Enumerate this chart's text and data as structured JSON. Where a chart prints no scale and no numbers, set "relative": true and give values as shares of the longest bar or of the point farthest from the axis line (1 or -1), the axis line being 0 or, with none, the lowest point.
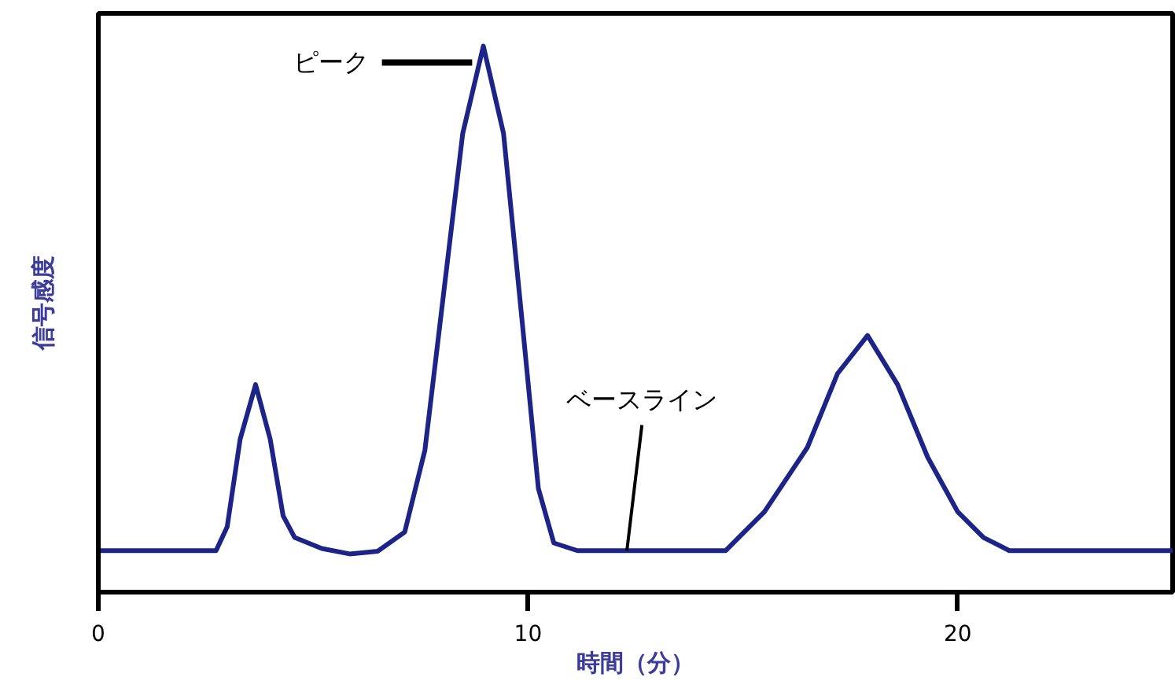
{
  "chart_data": {
    "type": "line",
    "relative": true,
    "xlabel": "時間（分）",
    "ylabel": "信号感度",
    "xlim": [
      0,
      25
    ],
    "xticks": [
      0,
      10,
      20
    ],
    "grid": false,
    "marker": "none",
    "line_style": "solid",
    "x": [
      0,
      2.74,
      3.0,
      3.3,
      3.66,
      4.0,
      4.3,
      4.57,
      5.2,
      5.85,
      6.5,
      7.13,
      7.6,
      8.04,
      8.48,
      8.96,
      9.43,
      9.87,
      10.24,
      10.6,
      11.15,
      14.6,
      15.5,
      16.5,
      17.2,
      17.9,
      18.6,
      19.3,
      20.0,
      20.6,
      21.2,
      25
    ],
    "series": [
      {
        "color": "#1c2587",
        "values": [
          0.076,
          0.076,
          0.12,
          0.28,
          0.38,
          0.28,
          0.14,
          0.1,
          0.08,
          0.07,
          0.075,
          0.11,
          0.26,
          0.55,
          0.84,
          1.0,
          0.84,
          0.49,
          0.19,
          0.09,
          0.076,
          0.076,
          0.147,
          0.265,
          0.4,
          0.47,
          0.38,
          0.247,
          0.147,
          0.1,
          0.076,
          0.076
        ]
      }
    ],
    "annotations": [
      {
        "text": "ピーク",
        "x": 8.7,
        "y": 0.97
      },
      {
        "text": "ベースライン",
        "x": 12.3,
        "y": 0.076
      }
    ]
  }
}
